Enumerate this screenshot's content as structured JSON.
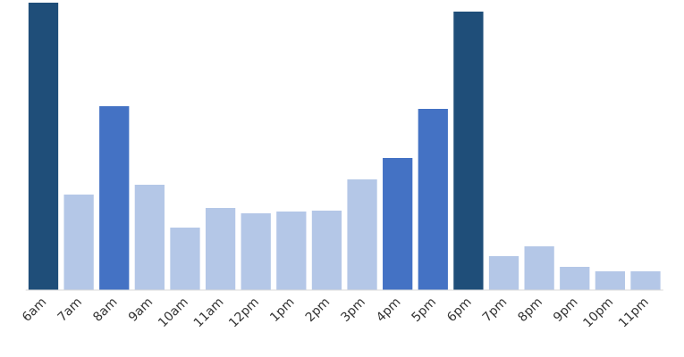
{
  "chart_data": {
    "type": "bar",
    "categories": [
      "6am",
      "7am",
      "8am",
      "9am",
      "10am",
      "11am",
      "12pm",
      "1pm",
      "2pm",
      "3pm",
      "4pm",
      "5pm",
      "6pm",
      "7pm",
      "8pm",
      "9pm",
      "10pm",
      "11pm"
    ],
    "values": [
      322,
      107,
      206,
      118,
      70,
      92,
      86,
      88,
      89,
      124,
      148,
      203,
      312,
      38,
      49,
      26,
      21,
      21
    ],
    "colors": [
      "#1f4e79",
      "#b4c7e7",
      "#4472c4",
      "#b4c7e7",
      "#b4c7e7",
      "#b4c7e7",
      "#b4c7e7",
      "#b4c7e7",
      "#b4c7e7",
      "#b4c7e7",
      "#4472c4",
      "#4472c4",
      "#1f4e79",
      "#b4c7e7",
      "#b4c7e7",
      "#b4c7e7",
      "#b4c7e7",
      "#b4c7e7"
    ],
    "ylim": [
      0,
      322
    ]
  }
}
